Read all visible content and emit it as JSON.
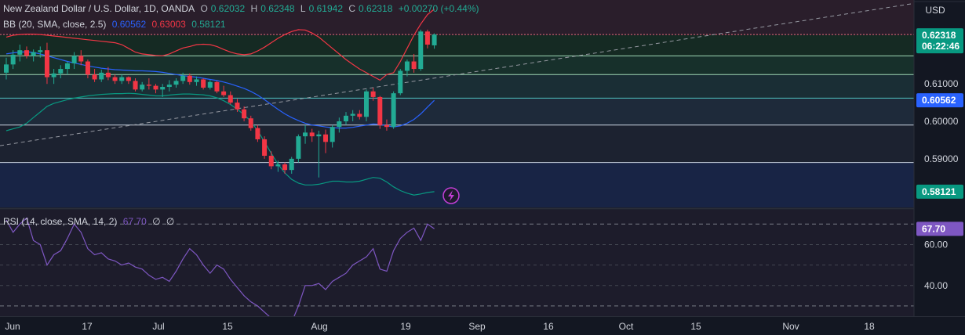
{
  "header": {
    "symbol": "New Zealand Dollar / U.S. Dollar, 1D, OANDA",
    "o_label": "O",
    "o_value": "0.62032",
    "h_label": "H",
    "h_value": "0.62348",
    "l_label": "L",
    "l_value": "0.61942",
    "c_label": "C",
    "c_value": "0.62318",
    "change": "+0.00270 (+0.44%)"
  },
  "bb_legend": {
    "title": "BB (20, SMA, close, 2.5)",
    "basis": "0.60562",
    "upper": "0.63003",
    "lower": "0.58121"
  },
  "rsi_legend": {
    "title": "RSI (14, close, SMA, 14, 2)",
    "value": "67.70",
    "v2": "∅",
    "v3": "∅"
  },
  "currency": "USD",
  "price_labels": {
    "last": "0.62318",
    "countdown": "06:22:46",
    "basis": "0.60562",
    "lower": "0.58121",
    "ticks": [
      "0.61000",
      "0.60000",
      "0.59000"
    ]
  },
  "rsi_labels": {
    "value": "67.70",
    "ticks": [
      "60.00",
      "40.00"
    ]
  },
  "time_axis": [
    "Jun",
    "17",
    "Jul",
    "15",
    "Aug",
    "19",
    "Sep",
    "16",
    "Oct",
    "15",
    "Nov",
    "18"
  ],
  "colors": {
    "background": "#131722",
    "up": "#22ab94",
    "down": "#f23645",
    "bb_basis": "#2962ff",
    "bb_upper": "#f23645",
    "bb_lower": "#089981",
    "rsi": "#7e57c2",
    "text": "#d1d4dc"
  },
  "chart_data": {
    "type": "candlestick",
    "price_range": [
      0.577,
      0.632
    ],
    "candles": [
      [
        0.613,
        0.617,
        0.6112,
        0.6152
      ],
      [
        0.6152,
        0.619,
        0.614,
        0.6178
      ],
      [
        0.6178,
        0.6205,
        0.616,
        0.619
      ],
      [
        0.619,
        0.62,
        0.6168,
        0.6175
      ],
      [
        0.6175,
        0.6192,
        0.616,
        0.6185
      ],
      [
        0.6185,
        0.62,
        0.617,
        0.619
      ],
      [
        0.619,
        0.621,
        0.61,
        0.6118
      ],
      [
        0.6118,
        0.614,
        0.61,
        0.6128
      ],
      [
        0.6128,
        0.615,
        0.6115,
        0.614
      ],
      [
        0.614,
        0.616,
        0.6125,
        0.6155
      ],
      [
        0.6155,
        0.6185,
        0.614,
        0.6175
      ],
      [
        0.6175,
        0.619,
        0.615,
        0.616
      ],
      [
        0.616,
        0.6165,
        0.6115,
        0.6125
      ],
      [
        0.6125,
        0.614,
        0.6105,
        0.6112
      ],
      [
        0.6112,
        0.6138,
        0.6105,
        0.613
      ],
      [
        0.613,
        0.6145,
        0.611,
        0.6118
      ],
      [
        0.6118,
        0.6125,
        0.61,
        0.6108
      ],
      [
        0.6108,
        0.6125,
        0.61,
        0.6118
      ],
      [
        0.6118,
        0.612,
        0.61,
        0.6108
      ],
      [
        0.6108,
        0.6115,
        0.608,
        0.6085
      ],
      [
        0.6085,
        0.6105,
        0.608,
        0.6098
      ],
      [
        0.6098,
        0.6115,
        0.6085,
        0.6095
      ],
      [
        0.6095,
        0.61,
        0.6075,
        0.6085
      ],
      [
        0.6085,
        0.61,
        0.6065,
        0.6092
      ],
      [
        0.6092,
        0.611,
        0.608,
        0.6098
      ],
      [
        0.6098,
        0.6115,
        0.609,
        0.6108
      ],
      [
        0.6108,
        0.613,
        0.61,
        0.6122
      ],
      [
        0.6122,
        0.6128,
        0.6098,
        0.6105
      ],
      [
        0.6105,
        0.612,
        0.6095,
        0.6112
      ],
      [
        0.6112,
        0.6115,
        0.6085,
        0.609
      ],
      [
        0.609,
        0.611,
        0.6085,
        0.6105
      ],
      [
        0.6105,
        0.6108,
        0.6075,
        0.608
      ],
      [
        0.608,
        0.6095,
        0.6065,
        0.607
      ],
      [
        0.607,
        0.608,
        0.6045,
        0.605
      ],
      [
        0.605,
        0.606,
        0.6025,
        0.6032
      ],
      [
        0.6032,
        0.604,
        0.6,
        0.6008
      ],
      [
        0.6008,
        0.6015,
        0.5975,
        0.5982
      ],
      [
        0.5982,
        0.599,
        0.5945,
        0.5952
      ],
      [
        0.5952,
        0.596,
        0.59,
        0.5908
      ],
      [
        0.5908,
        0.592,
        0.5872,
        0.588
      ],
      [
        0.588,
        0.5895,
        0.5865,
        0.5885
      ],
      [
        0.5885,
        0.589,
        0.586,
        0.587
      ],
      [
        0.587,
        0.5905,
        0.586,
        0.59
      ],
      [
        0.59,
        0.5965,
        0.589,
        0.596
      ],
      [
        0.596,
        0.599,
        0.594,
        0.597
      ],
      [
        0.597,
        0.598,
        0.5945,
        0.596
      ],
      [
        0.596,
        0.5975,
        0.585,
        0.5965
      ],
      [
        0.5965,
        0.5978,
        0.5915,
        0.5945
      ],
      [
        0.5945,
        0.599,
        0.593,
        0.5985
      ],
      [
        0.5985,
        0.601,
        0.597,
        0.6
      ],
      [
        0.6,
        0.6025,
        0.599,
        0.6015
      ],
      [
        0.6015,
        0.603,
        0.6,
        0.602
      ],
      [
        0.602,
        0.603,
        0.6005,
        0.6012
      ],
      [
        0.6012,
        0.6085,
        0.6,
        0.608
      ],
      [
        0.608,
        0.609,
        0.6055,
        0.6065
      ],
      [
        0.6065,
        0.6068,
        0.598,
        0.599
      ],
      [
        0.599,
        0.6005,
        0.5975,
        0.5985
      ],
      [
        0.5985,
        0.608,
        0.598,
        0.6075
      ],
      [
        0.6075,
        0.614,
        0.607,
        0.6135
      ],
      [
        0.6135,
        0.6165,
        0.612,
        0.616
      ],
      [
        0.616,
        0.618,
        0.613,
        0.614
      ],
      [
        0.614,
        0.6245,
        0.6135,
        0.624
      ],
      [
        0.624,
        0.6245,
        0.6195,
        0.6205
      ],
      [
        0.6203,
        0.6235,
        0.6194,
        0.6232
      ]
    ],
    "bb_basis": [
      0.618,
      0.6183,
      0.6185,
      0.6186,
      0.6184,
      0.618,
      0.6175,
      0.617,
      0.6165,
      0.616,
      0.6156,
      0.6152,
      0.6148,
      0.6145,
      0.6142,
      0.614,
      0.6138,
      0.6137,
      0.6136,
      0.6135,
      0.6135,
      0.6134,
      0.6133,
      0.6131,
      0.6128,
      0.6125,
      0.6122,
      0.612,
      0.6118,
      0.6115,
      0.6112,
      0.6109,
      0.6105,
      0.61,
      0.6094,
      0.6088,
      0.608,
      0.607,
      0.6058,
      0.6045,
      0.6032,
      0.602,
      0.601,
      0.6002,
      0.5995,
      0.599,
      0.5988,
      0.5985,
      0.5983,
      0.5982,
      0.5982,
      0.5984,
      0.5987,
      0.599,
      0.5993,
      0.5992,
      0.5988,
      0.5985,
      0.5988,
      0.5995,
      0.6005,
      0.602,
      0.6038,
      0.6056
    ],
    "bb_upper": [
      0.6225,
      0.623,
      0.6232,
      0.6233,
      0.6233,
      0.6232,
      0.623,
      0.6228,
      0.6226,
      0.6224,
      0.6222,
      0.622,
      0.6218,
      0.6216,
      0.6214,
      0.6212,
      0.621,
      0.6205,
      0.6195,
      0.6185,
      0.618,
      0.6178,
      0.6176,
      0.6175,
      0.618,
      0.6188,
      0.6196,
      0.62,
      0.6205,
      0.6206,
      0.6205,
      0.62,
      0.6192,
      0.6185,
      0.618,
      0.6178,
      0.618,
      0.6188,
      0.6198,
      0.621,
      0.6222,
      0.6232,
      0.624,
      0.6245,
      0.6244,
      0.6236,
      0.6225,
      0.621,
      0.6195,
      0.618,
      0.6165,
      0.6152,
      0.614,
      0.613,
      0.612,
      0.611,
      0.6125,
      0.613,
      0.616,
      0.6195,
      0.623,
      0.626,
      0.6285,
      0.63
    ],
    "bb_lower": [
      0.5975,
      0.598,
      0.5985,
      0.5995,
      0.601,
      0.6025,
      0.604,
      0.6048,
      0.6053,
      0.6058,
      0.6062,
      0.6065,
      0.6068,
      0.607,
      0.6072,
      0.6073,
      0.6074,
      0.6074,
      0.6075,
      0.6074,
      0.6072,
      0.607,
      0.6068,
      0.6068,
      0.607,
      0.6072,
      0.6073,
      0.6073,
      0.6072,
      0.6071,
      0.6068,
      0.6063,
      0.6055,
      0.6045,
      0.6032,
      0.6018,
      0.6,
      0.5975,
      0.5945,
      0.5915,
      0.5885,
      0.5862,
      0.5845,
      0.5835,
      0.583,
      0.583,
      0.5832,
      0.5836,
      0.584,
      0.584,
      0.5838,
      0.5838,
      0.584,
      0.5845,
      0.585,
      0.5848,
      0.5838,
      0.5825,
      0.5815,
      0.5808,
      0.5803,
      0.5806,
      0.581,
      0.5812
    ],
    "rsi": [
      72,
      66,
      70,
      73,
      62,
      60,
      50,
      55,
      57,
      63,
      70,
      66,
      58,
      55,
      56,
      53,
      52,
      50,
      51,
      49,
      48,
      45,
      43,
      44,
      42,
      47,
      53,
      58,
      55,
      50,
      46,
      50,
      48,
      43,
      39,
      35,
      32,
      30,
      27,
      24,
      20,
      18,
      22,
      30,
      40,
      40,
      41,
      38,
      42,
      44,
      46,
      50,
      52,
      54,
      58,
      48,
      47,
      57,
      63,
      66,
      68,
      62,
      70,
      67.7
    ],
    "rsi_range": [
      25,
      77
    ],
    "time_axis_labels": [
      "Jun",
      "17",
      "Jul",
      "15",
      "Aug",
      "19",
      "Sep",
      "16",
      "Oct",
      "15",
      "Nov",
      "18"
    ]
  }
}
